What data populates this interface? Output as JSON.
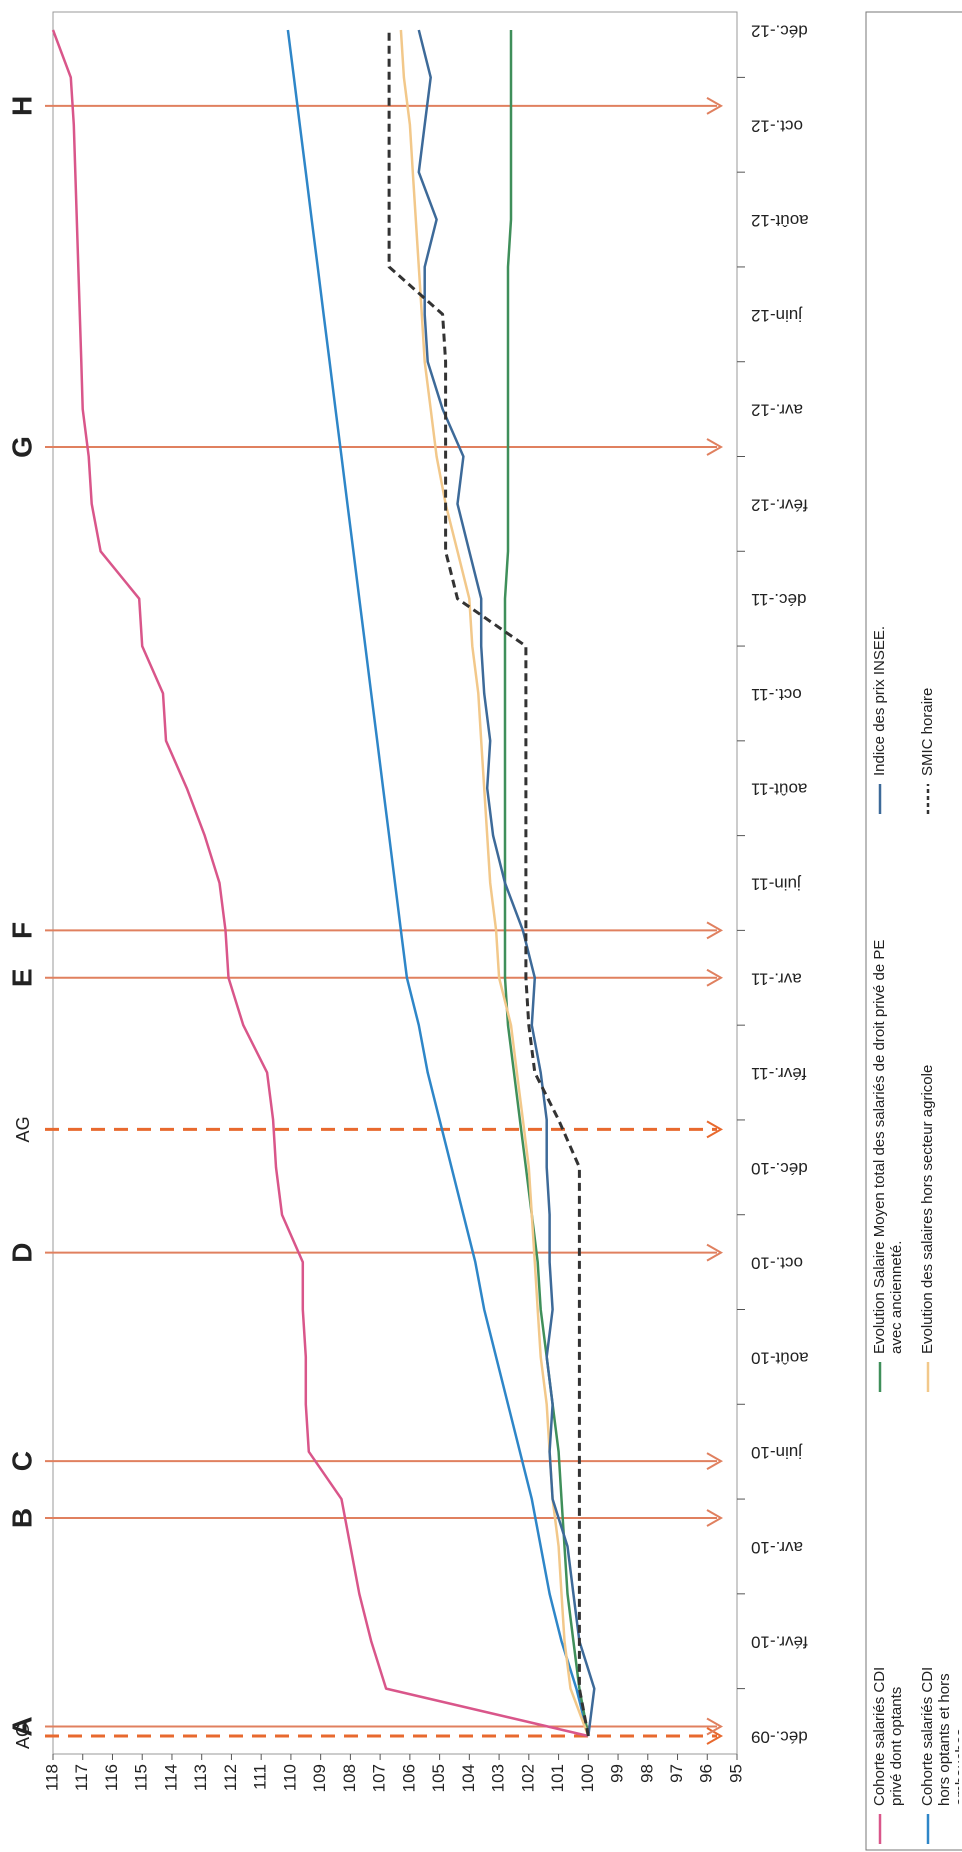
{
  "chart_data": {
    "type": "line",
    "categories": [
      "déc.-09",
      null,
      "févr.-10",
      null,
      "avr.-10",
      null,
      "juin-10",
      null,
      "août-10",
      null,
      "oct.-10",
      null,
      "déc.-10",
      null,
      "févr.-11",
      null,
      "avr.-11",
      null,
      "juin-11",
      null,
      "août-11",
      null,
      "oct.-11",
      null,
      "déc.-11",
      null,
      "févr.-12",
      null,
      "avr.-12",
      null,
      "juin-12",
      null,
      "août-12",
      null,
      "oct.-12",
      null,
      "déc.-12"
    ],
    "ylim": [
      95,
      118
    ],
    "yticks": [
      95,
      96,
      97,
      98,
      99,
      100,
      101,
      102,
      103,
      104,
      105,
      106,
      107,
      108,
      109,
      110,
      111,
      112,
      113,
      114,
      115,
      116,
      117,
      118
    ],
    "grid": false,
    "series": [
      {
        "name": "Cohorte salariés CDI privé dont optants",
        "color": "#d9568a",
        "dashed": false,
        "values": [
          100,
          106.8,
          107.3,
          107.7,
          108.0,
          108.3,
          109.4,
          109.5,
          109.5,
          109.6,
          109.6,
          110.3,
          110.5,
          110.6,
          110.8,
          111.6,
          112.1,
          112.2,
          112.4,
          112.9,
          113.5,
          114.2,
          114.3,
          115.0,
          115.1,
          116.4,
          116.7,
          116.8,
          117.0,
          117.05,
          117.1,
          117.15,
          117.2,
          117.25,
          117.3,
          117.4,
          118
        ]
      },
      {
        "name": "Cohorte salariés CDI hors optants et hors embauches",
        "color": "#2e86c8",
        "dashed": false,
        "values": [
          100,
          100.4,
          100.9,
          101.3,
          101.6,
          101.9,
          102.3,
          102.7,
          103.1,
          103.5,
          103.8,
          104.2,
          104.6,
          105.0,
          105.4,
          105.7,
          106.1,
          106.3,
          106.5,
          106.7,
          106.9,
          107.1,
          107.3,
          107.5,
          107.7,
          107.9,
          108.1,
          108.3,
          108.5,
          108.7,
          108.9,
          109.1,
          109.3,
          109.5,
          109.7,
          109.9,
          110.1
        ]
      },
      {
        "name": "Evolution Salaire Moyen total des salariés de droit privé de PE avec ancienneté.",
        "color": "#3f8f5a",
        "dashed": false,
        "values": [
          100,
          100.3,
          100.5,
          100.7,
          100.8,
          100.9,
          101.0,
          101.2,
          101.4,
          101.6,
          101.7,
          101.9,
          102.1,
          102.3,
          102.5,
          102.7,
          102.8,
          102.8,
          102.8,
          102.8,
          102.8,
          102.8,
          102.8,
          102.8,
          102.8,
          102.7,
          102.7,
          102.7,
          102.7,
          102.7,
          102.7,
          102.7,
          102.6,
          102.6,
          102.6,
          102.6,
          102.6
        ]
      },
      {
        "name": "Evolution des salaires hors secteur agricole",
        "color": "#f2c88a",
        "dashed": false,
        "values": [
          100,
          100.6,
          100.8,
          100.9,
          101.0,
          101.2,
          101.3,
          101.4,
          101.6,
          101.7,
          101.8,
          101.9,
          102.0,
          102.2,
          102.4,
          102.6,
          103.0,
          103.1,
          103.3,
          103.4,
          103.5,
          103.6,
          103.7,
          103.9,
          104.0,
          104.4,
          104.8,
          105.1,
          105.3,
          105.5,
          105.6,
          105.7,
          105.8,
          105.9,
          106.0,
          106.2,
          106.3
        ]
      },
      {
        "name": "Indice des prix INSEE.",
        "color": "#3d6a99",
        "dashed": false,
        "values": [
          100,
          99.8,
          100.3,
          100.5,
          100.7,
          101.2,
          101.3,
          101.2,
          101.4,
          101.2,
          101.3,
          101.3,
          101.4,
          101.4,
          101.6,
          101.9,
          101.8,
          102.2,
          102.8,
          103.2,
          103.4,
          103.3,
          103.5,
          103.6,
          103.6,
          104.0,
          104.4,
          104.2,
          104.9,
          105.4,
          105.5,
          105.5,
          105.1,
          105.7,
          105.5,
          105.3,
          105.7
        ]
      },
      {
        "name": "SMIC horaire",
        "color": "#333333",
        "dashed": true,
        "values": [
          100,
          100.3,
          100.3,
          100.3,
          100.3,
          100.3,
          100.3,
          100.3,
          100.3,
          100.3,
          100.3,
          100.3,
          100.3,
          101,
          101.8,
          102,
          102.1,
          102.1,
          102.1,
          102.1,
          102.1,
          102.1,
          102.1,
          102.1,
          104.4,
          104.8,
          104.8,
          104.8,
          104.8,
          104.8,
          104.9,
          106.7,
          106.7,
          106.7,
          106.7,
          106.7,
          106.7
        ]
      }
    ],
    "annotations": [
      {
        "label": "AG",
        "x": 0,
        "dashed": true
      },
      {
        "label": "A",
        "x": 0.2,
        "dashed": false
      },
      {
        "label": "B",
        "x": 4.6,
        "dashed": false
      },
      {
        "label": "C",
        "x": 5.8,
        "dashed": false
      },
      {
        "label": "D",
        "x": 10.2,
        "dashed": false
      },
      {
        "label": "AG",
        "x": 12.8,
        "dashed": true
      },
      {
        "label": "E",
        "x": 16,
        "dashed": false
      },
      {
        "label": "F",
        "x": 17,
        "dashed": false
      },
      {
        "label": "G",
        "x": 27.2,
        "dashed": false
      },
      {
        "label": "H",
        "x": 34.4,
        "dashed": false
      }
    ]
  }
}
